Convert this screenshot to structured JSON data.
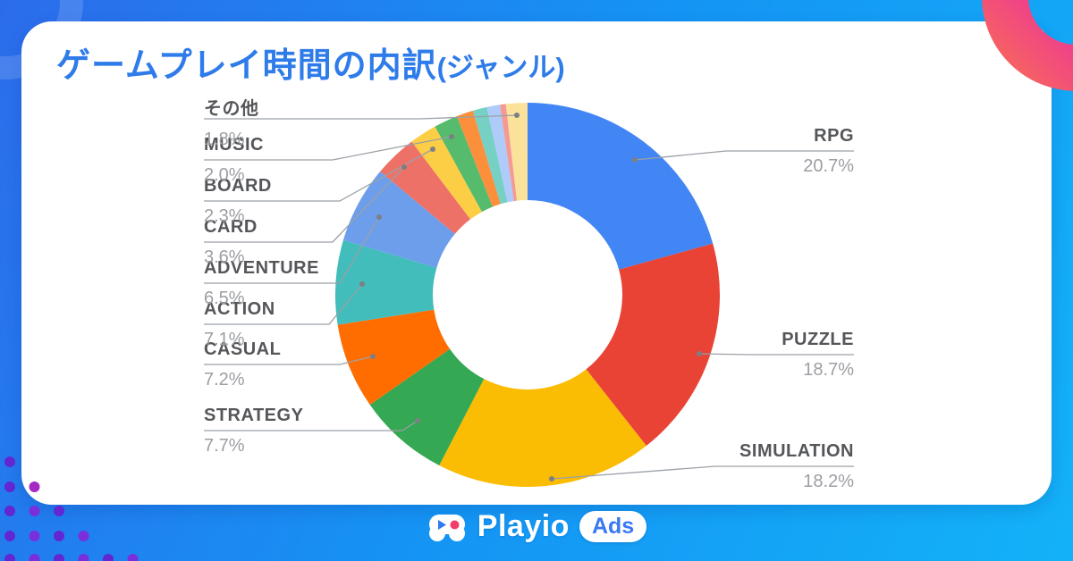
{
  "page": {
    "title_main": "ゲームプレイ時間の内訳",
    "title_sub": "(ジャンル)"
  },
  "chart_data": {
    "type": "pie",
    "donut": true,
    "title": "ゲームプレイ時間の内訳(ジャンル)",
    "unit": "percent of gameplay time",
    "legend_position": "callout-labels",
    "start_angle_deg": 0,
    "direction": "clockwise",
    "slices": [
      {
        "label": "RPG",
        "value": 20.7,
        "display": "20.7%",
        "color": "#4285F4",
        "labeled": true
      },
      {
        "label": "PUZZLE",
        "value": 18.7,
        "display": "18.7%",
        "color": "#E94335",
        "labeled": true
      },
      {
        "label": "SIMULATION",
        "value": 18.2,
        "display": "18.2%",
        "color": "#FBBC04",
        "labeled": true
      },
      {
        "label": "STRATEGY",
        "value": 7.7,
        "display": "7.7%",
        "color": "#34A853",
        "labeled": true
      },
      {
        "label": "CASUAL",
        "value": 7.2,
        "display": "7.2%",
        "color": "#FF6D01",
        "labeled": true
      },
      {
        "label": "ACTION",
        "value": 7.1,
        "display": "7.1%",
        "color": "#42BDBB",
        "labeled": true
      },
      {
        "label": "ADVENTURE",
        "value": 6.5,
        "display": "6.5%",
        "color": "#6D9EEB",
        "labeled": true
      },
      {
        "label": "CARD",
        "value": 3.6,
        "display": "3.6%",
        "color": "#EE7168",
        "labeled": true
      },
      {
        "label": "BOARD",
        "value": 2.3,
        "display": "2.3%",
        "color": "#FCCE45",
        "labeled": true
      },
      {
        "label": "MUSIC",
        "value": 2.0,
        "display": "2.0%",
        "color": "#57BB6D",
        "labeled": true
      },
      {
        "label": "",
        "value": 1.4,
        "display": "",
        "color": "#FC8F3B",
        "labeled": false
      },
      {
        "label": "",
        "value": 1.2,
        "display": "",
        "color": "#76D0C4",
        "labeled": false
      },
      {
        "label": "",
        "value": 1.1,
        "display": "",
        "color": "#AECBFA",
        "labeled": false
      },
      {
        "label": "",
        "value": 0.5,
        "display": "",
        "color": "#F49A95",
        "labeled": false
      },
      {
        "label": "その他",
        "value": 1.8,
        "display": "1.8%",
        "color": "#FBE29B",
        "labeled": true
      }
    ]
  },
  "footer": {
    "brand": "Playio",
    "badge": "Ads",
    "icon": "gamepad-icon"
  },
  "theme": {
    "title_color": "#2E7BEA",
    "bg_gradient": [
      "#2C6CEB",
      "#1495F4",
      "#13B2F8"
    ],
    "ring_gradient": [
      "#F97150",
      "#EE3D8F",
      "#A435E0"
    ],
    "dot_color": "#6226D2",
    "label_name_color": "#55565A",
    "label_pct_color": "#9C9EA3"
  }
}
